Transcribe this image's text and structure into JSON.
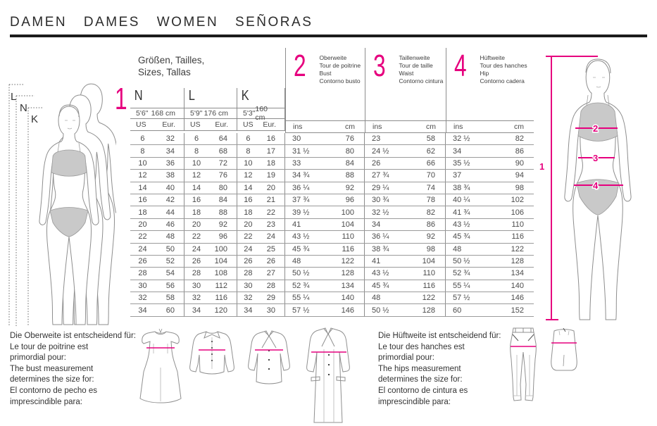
{
  "colors": {
    "accent": "#e6007e",
    "rule": "#1c1c1c",
    "table_line": "#8c8c8c"
  },
  "header": {
    "title": "DAMEN  DAMES  WOMEN  SEÑORAS"
  },
  "table": {
    "title_line1": "Größen, Tailles,",
    "title_line2": "Sizes, Tallas",
    "row_number_label": "1",
    "height_groups": [
      {
        "code": "N",
        "height_imperial": "5'6\"",
        "height_metric": "168 cm",
        "col1": "US",
        "col2": "Eur."
      },
      {
        "code": "L",
        "height_imperial": "5'9\"",
        "height_metric": "176 cm",
        "col1": "US",
        "col2": "Eur."
      },
      {
        "code": "K",
        "height_imperial": "5'3\"",
        "height_metric": "160 cm",
        "col1": "US",
        "col2": "Eur."
      }
    ],
    "measure_groups": [
      {
        "number": "2",
        "labels": [
          "Oberweite",
          "Tour de poitrine",
          "Bust",
          "Contorno busto"
        ],
        "col1": "ins",
        "col2": "cm"
      },
      {
        "number": "3",
        "labels": [
          "Taillenweite",
          "Tour de taille",
          "Waist",
          "Contorno cintura"
        ],
        "col1": "ins",
        "col2": "cm"
      },
      {
        "number": "4",
        "labels": [
          "Hüftweite",
          "Tour des hanches",
          "Hip",
          "Contorno cadera"
        ],
        "col1": "ins",
        "col2": "cm"
      }
    ],
    "rows": [
      [
        "6",
        "32",
        "6",
        "64",
        "6",
        "16",
        "30",
        "76",
        "23",
        "58",
        "32 ½",
        "82"
      ],
      [
        "8",
        "34",
        "8",
        "68",
        "8",
        "17",
        "31 ½",
        "80",
        "24 ½",
        "62",
        "34",
        "86"
      ],
      [
        "10",
        "36",
        "10",
        "72",
        "10",
        "18",
        "33",
        "84",
        "26",
        "66",
        "35 ½",
        "90"
      ],
      [
        "12",
        "38",
        "12",
        "76",
        "12",
        "19",
        "34 ¾",
        "88",
        "27 ¾",
        "70",
        "37",
        "94"
      ],
      [
        "14",
        "40",
        "14",
        "80",
        "14",
        "20",
        "36 ¼",
        "92",
        "29 ¼",
        "74",
        "38 ¾",
        "98"
      ],
      [
        "16",
        "42",
        "16",
        "84",
        "16",
        "21",
        "37 ¾",
        "96",
        "30 ¾",
        "78",
        "40 ¼",
        "102"
      ],
      [
        "18",
        "44",
        "18",
        "88",
        "18",
        "22",
        "39 ½",
        "100",
        "32 ½",
        "82",
        "41 ¾",
        "106"
      ],
      [
        "20",
        "46",
        "20",
        "92",
        "20",
        "23",
        "41",
        "104",
        "34",
        "86",
        "43 ½",
        "110"
      ],
      [
        "22",
        "48",
        "22",
        "96",
        "22",
        "24",
        "43 ½",
        "110",
        "36 ¼",
        "92",
        "45 ¾",
        "116"
      ],
      [
        "24",
        "50",
        "24",
        "100",
        "24",
        "25",
        "45 ¾",
        "116",
        "38 ¾",
        "98",
        "48",
        "122"
      ],
      [
        "26",
        "52",
        "26",
        "104",
        "26",
        "26",
        "48",
        "122",
        "41",
        "104",
        "50 ½",
        "128"
      ],
      [
        "28",
        "54",
        "28",
        "108",
        "28",
        "27",
        "50 ½",
        "128",
        "43 ½",
        "110",
        "52 ¾",
        "134"
      ],
      [
        "30",
        "56",
        "30",
        "112",
        "30",
        "28",
        "52 ¾",
        "134",
        "45 ¾",
        "116",
        "55 ¼",
        "140"
      ],
      [
        "32",
        "58",
        "32",
        "116",
        "32",
        "29",
        "55 ¼",
        "140",
        "48",
        "122",
        "57 ½",
        "146"
      ],
      [
        "34",
        "60",
        "34",
        "120",
        "34",
        "30",
        "57 ½",
        "146",
        "50 ½",
        "128",
        "60",
        "152"
      ]
    ]
  },
  "left_figure": {
    "labels": [
      "L",
      "N",
      "K"
    ]
  },
  "right_figure": {
    "height_label": "1",
    "bust_label": "2",
    "waist_label": "3",
    "hip_label": "4"
  },
  "bust_note": {
    "lines": [
      "Die Oberweite ist entscheidend für:",
      "Le tour de poitrine est",
      "primordial pour:",
      "The bust measurement",
      "determines the size for:",
      "El contorno de pecho es",
      "imprescindible para:"
    ]
  },
  "hip_note": {
    "lines": [
      "Die Hüftweite ist entscheidend für:",
      "Le tour des hanches est",
      "primordial pour:",
      "The hips measurement",
      "determines the size for:",
      "El contorno de cintura es",
      "imprescindible para:"
    ]
  }
}
